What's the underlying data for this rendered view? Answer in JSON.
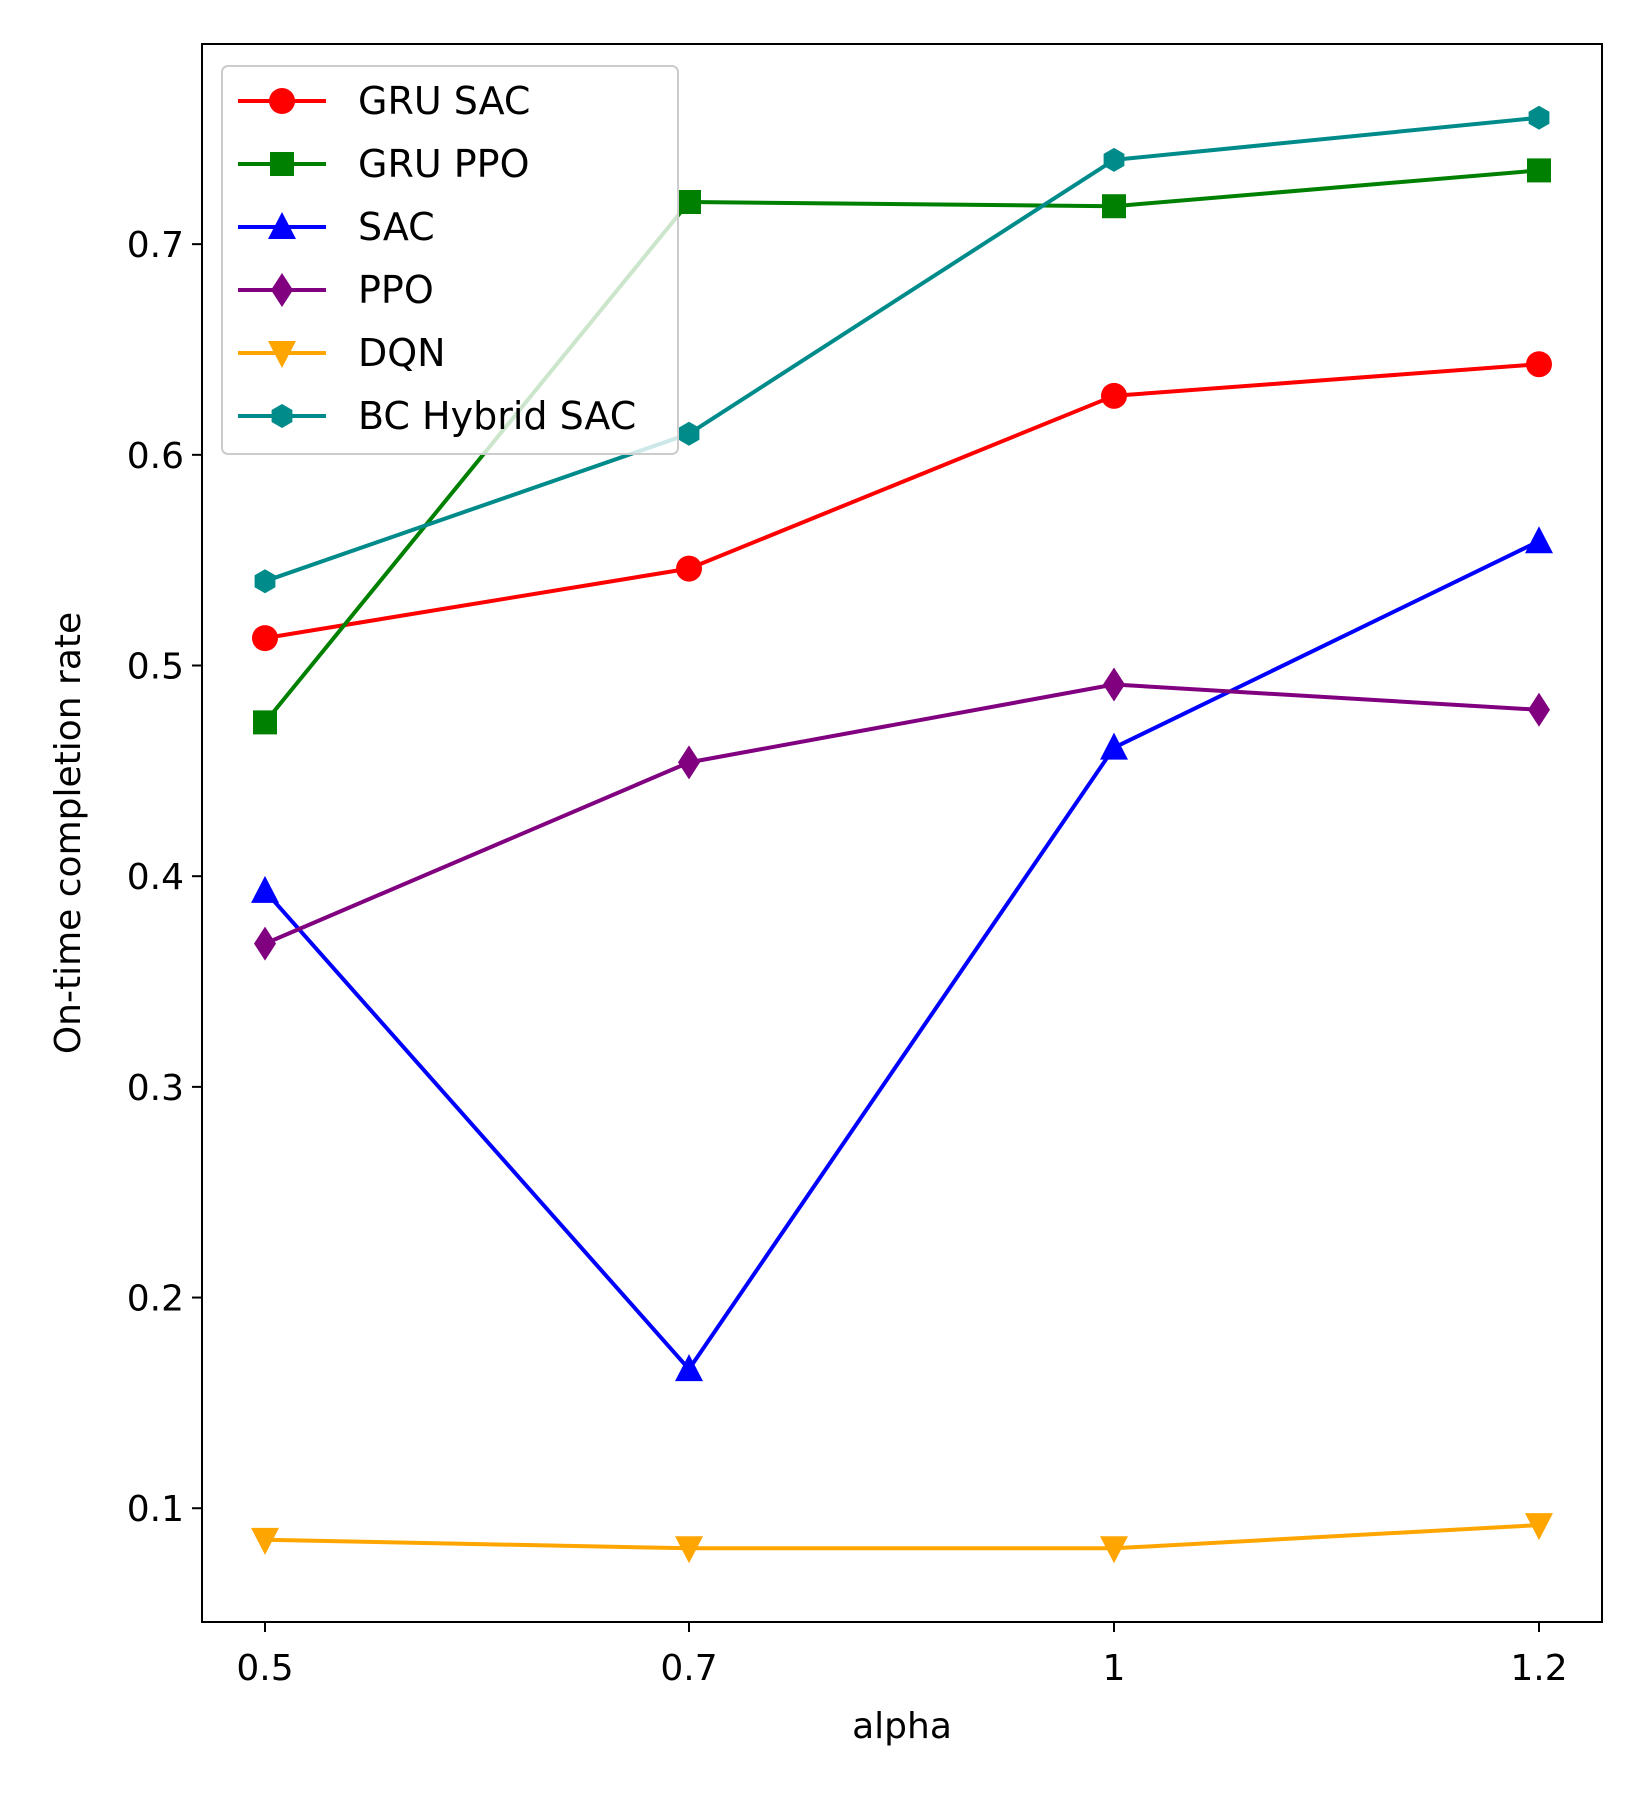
{
  "chart_data": {
    "type": "line",
    "title": "",
    "xlabel": "alpha",
    "ylabel": "On-time completion rate",
    "categories": [
      "0.5",
      "0.7",
      "1",
      "1.2"
    ],
    "ylim": [
      0.046,
      0.795
    ],
    "yticks": [
      {
        "value": 0.1,
        "label": "0.1"
      },
      {
        "value": 0.2,
        "label": "0.2"
      },
      {
        "value": 0.3,
        "label": "0.3"
      },
      {
        "value": 0.4,
        "label": "0.4"
      },
      {
        "value": 0.5,
        "label": "0.5"
      },
      {
        "value": 0.6,
        "label": "0.6"
      },
      {
        "value": 0.7,
        "label": "0.7"
      }
    ],
    "grid": false,
    "legend_position": "top-left",
    "series": [
      {
        "name": "GRU SAC",
        "color": "#ff0000",
        "marker": "circle",
        "values": [
          0.513,
          0.546,
          0.628,
          0.643
        ]
      },
      {
        "name": "GRU PPO",
        "color": "#008000",
        "marker": "square",
        "values": [
          0.473,
          0.72,
          0.718,
          0.735
        ]
      },
      {
        "name": "SAC",
        "color": "#0000ff",
        "marker": "triangle-up",
        "values": [
          0.393,
          0.166,
          0.461,
          0.559
        ]
      },
      {
        "name": "PPO",
        "color": "#800080",
        "marker": "diamond",
        "values": [
          0.368,
          0.454,
          0.491,
          0.479
        ]
      },
      {
        "name": "DQN",
        "color": "#ffa500",
        "marker": "triangle-down",
        "values": [
          0.085,
          0.081,
          0.081,
          0.092
        ]
      },
      {
        "name": "BC Hybrid SAC",
        "color": "#008b8b",
        "marker": "hexagon",
        "values": [
          0.54,
          0.61,
          0.74,
          0.76
        ]
      }
    ]
  }
}
